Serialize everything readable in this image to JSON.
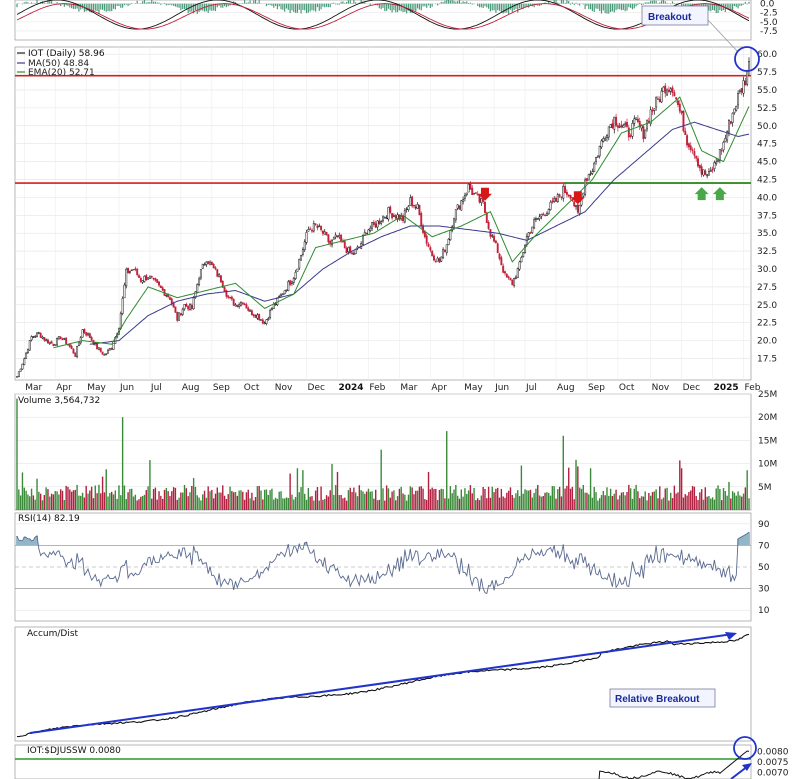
{
  "chart_data": [
    {
      "type": "line",
      "panel": "macd-histogram",
      "y_ticks": [
        "0.0",
        "-2.5",
        "-5.0",
        "-7.5"
      ],
      "annotation": "Breakout"
    },
    {
      "type": "candlestick",
      "panel": "price",
      "title": "IOT (Daily)",
      "last": "58.96",
      "legend": [
        {
          "label": "IOT (Daily)",
          "value": "58.96",
          "color": "#222222"
        },
        {
          "label": "MA(50)",
          "value": "48.84",
          "color": "#3a3a8c"
        },
        {
          "label": "EMA(20)",
          "value": "52.71",
          "color": "#2e8b2e"
        }
      ],
      "y_ticks": [
        "60.0",
        "57.5",
        "55.0",
        "52.5",
        "50.0",
        "47.5",
        "45.0",
        "42.5",
        "40.0",
        "37.5",
        "35.0",
        "32.5",
        "30.0",
        "27.5",
        "25.0",
        "22.5",
        "20.0",
        "17.5"
      ],
      "ylim": [
        14.5,
        61
      ],
      "x_ticks": [
        "Mar",
        "Apr",
        "May",
        "Jun",
        "Jul",
        "Aug",
        "Sep",
        "Oct",
        "Nov",
        "Dec",
        "2024",
        "Feb",
        "Mar",
        "Apr",
        "May",
        "Jun",
        "Jul",
        "Aug",
        "Sep",
        "Oct",
        "Nov",
        "Dec",
        "2025",
        "Feb"
      ],
      "x_ticks_bold": [
        "2024",
        "2025"
      ],
      "resistance": 57,
      "support": 42,
      "close_path": [
        [
          0,
          15.0
        ],
        [
          4,
          17.5
        ],
        [
          8,
          20.5
        ],
        [
          12,
          21.0
        ],
        [
          16,
          20.0
        ],
        [
          20,
          19.5
        ],
        [
          24,
          20.5
        ],
        [
          28,
          19.5
        ],
        [
          32,
          18.0
        ],
        [
          36,
          21.5
        ],
        [
          40,
          20.5
        ],
        [
          44,
          19.0
        ],
        [
          48,
          18.0
        ],
        [
          52,
          19.0
        ],
        [
          56,
          22.0
        ],
        [
          60,
          29.5
        ],
        [
          64,
          30.0
        ],
        [
          68,
          28.5
        ],
        [
          72,
          29.0
        ],
        [
          76,
          28.0
        ],
        [
          80,
          27.0
        ],
        [
          84,
          26.0
        ],
        [
          88,
          23.0
        ],
        [
          92,
          25.0
        ],
        [
          96,
          24.5
        ],
        [
          100,
          29.0
        ],
        [
          104,
          31.5
        ],
        [
          108,
          30.0
        ],
        [
          112,
          28.5
        ],
        [
          116,
          26.0
        ],
        [
          120,
          25.0
        ],
        [
          124,
          25.5
        ],
        [
          128,
          24.0
        ],
        [
          132,
          23.5
        ],
        [
          136,
          22.5
        ],
        [
          140,
          24.5
        ],
        [
          144,
          26.0
        ],
        [
          148,
          27.5
        ],
        [
          152,
          29.0
        ],
        [
          156,
          32.0
        ],
        [
          160,
          35.5
        ],
        [
          164,
          36.0
        ],
        [
          168,
          35.0
        ],
        [
          172,
          33.5
        ],
        [
          176,
          34.5
        ],
        [
          180,
          33.0
        ],
        [
          184,
          32.0
        ],
        [
          188,
          33.0
        ],
        [
          192,
          35.5
        ],
        [
          196,
          36.0
        ],
        [
          200,
          37.0
        ],
        [
          204,
          38.0
        ],
        [
          208,
          37.5
        ],
        [
          212,
          37.0
        ],
        [
          216,
          39.5
        ],
        [
          220,
          38.5
        ],
        [
          224,
          34.5
        ],
        [
          228,
          32.0
        ],
        [
          232,
          31.0
        ],
        [
          236,
          33.5
        ],
        [
          240,
          37.5
        ],
        [
          244,
          39.5
        ],
        [
          248,
          41.5
        ],
        [
          252,
          40.0
        ],
        [
          256,
          39.0
        ],
        [
          260,
          35.0
        ],
        [
          264,
          32.5
        ],
        [
          268,
          29.0
        ],
        [
          272,
          28.0
        ],
        [
          276,
          30.5
        ],
        [
          280,
          34.5
        ],
        [
          284,
          36.5
        ],
        [
          288,
          37.5
        ],
        [
          292,
          38.5
        ],
        [
          296,
          39.5
        ],
        [
          300,
          41.0
        ],
        [
          304,
          40.5
        ],
        [
          308,
          37.5
        ],
        [
          312,
          42.5
        ],
        [
          316,
          44.0
        ],
        [
          320,
          47.0
        ],
        [
          324,
          49.5
        ],
        [
          328,
          51.0
        ],
        [
          332,
          50.0
        ],
        [
          336,
          49.0
        ],
        [
          340,
          50.5
        ],
        [
          344,
          49.0
        ],
        [
          348,
          52.0
        ],
        [
          352,
          53.5
        ],
        [
          356,
          55.5
        ],
        [
          360,
          55.5
        ],
        [
          364,
          52.0
        ],
        [
          368,
          48.0
        ],
        [
          372,
          46.5
        ],
        [
          376,
          43.5
        ],
        [
          380,
          43.0
        ],
        [
          384,
          45.0
        ],
        [
          388,
          47.5
        ],
        [
          392,
          51.0
        ],
        [
          396,
          54.0
        ],
        [
          400,
          56.5
        ],
        [
          402,
          58.96
        ]
      ],
      "ma50_path": [
        [
          40,
          19.5
        ],
        [
          56,
          20.0
        ],
        [
          72,
          23.5
        ],
        [
          88,
          25.5
        ],
        [
          104,
          26.5
        ],
        [
          120,
          27.0
        ],
        [
          136,
          25.5
        ],
        [
          152,
          26.5
        ],
        [
          168,
          30.0
        ],
        [
          184,
          32.5
        ],
        [
          200,
          34.5
        ],
        [
          216,
          36.0
        ],
        [
          232,
          36.0
        ],
        [
          248,
          35.5
        ],
        [
          264,
          35.0
        ],
        [
          280,
          34.0
        ],
        [
          296,
          36.0
        ],
        [
          312,
          38.0
        ],
        [
          328,
          42.5
        ],
        [
          344,
          46.0
        ],
        [
          360,
          49.5
        ],
        [
          372,
          50.5
        ],
        [
          384,
          49.5
        ],
        [
          396,
          48.5
        ],
        [
          402,
          48.84
        ]
      ],
      "ema20_path": [
        [
          20,
          19.0
        ],
        [
          36,
          20.0
        ],
        [
          52,
          19.5
        ],
        [
          60,
          23.0
        ],
        [
          72,
          27.5
        ],
        [
          88,
          26.0
        ],
        [
          104,
          27.0
        ],
        [
          120,
          28.0
        ],
        [
          136,
          24.5
        ],
        [
          152,
          26.5
        ],
        [
          164,
          33.0
        ],
        [
          180,
          34.0
        ],
        [
          196,
          35.0
        ],
        [
          212,
          37.5
        ],
        [
          228,
          34.5
        ],
        [
          244,
          36.0
        ],
        [
          260,
          38.0
        ],
        [
          272,
          31.0
        ],
        [
          284,
          34.5
        ],
        [
          300,
          38.5
        ],
        [
          316,
          42.5
        ],
        [
          332,
          49.0
        ],
        [
          348,
          50.5
        ],
        [
          364,
          54.0
        ],
        [
          376,
          46.5
        ],
        [
          388,
          45.0
        ],
        [
          402,
          52.71
        ]
      ],
      "down_arrows_x": [
        257,
        308
      ],
      "up_arrows_x": [
        376,
        386
      ]
    },
    {
      "type": "bar",
      "panel": "volume",
      "title": "Volume",
      "last": "3,564,732",
      "y_ticks": [
        "25M",
        "20M",
        "15M",
        "10M",
        "5M"
      ],
      "ylim": [
        0,
        25000000
      ]
    },
    {
      "type": "line",
      "panel": "rsi",
      "title": "RSI(14)",
      "last": "82.19",
      "y_ticks": [
        "90",
        "70",
        "50",
        "30",
        "10"
      ],
      "ylim": [
        0,
        100
      ]
    },
    {
      "type": "line",
      "panel": "accum-dist",
      "title": "Accum/Dist",
      "annotation": "Relative Breakout"
    },
    {
      "type": "line",
      "panel": "relative-strength",
      "title": "IOT:$DJUSSW",
      "last": "0.0080",
      "y_ticks": [
        "0.0080",
        "0.0075",
        "0.0070"
      ],
      "ylim": [
        0.0067,
        0.0083
      ],
      "support": 0.0077
    }
  ]
}
